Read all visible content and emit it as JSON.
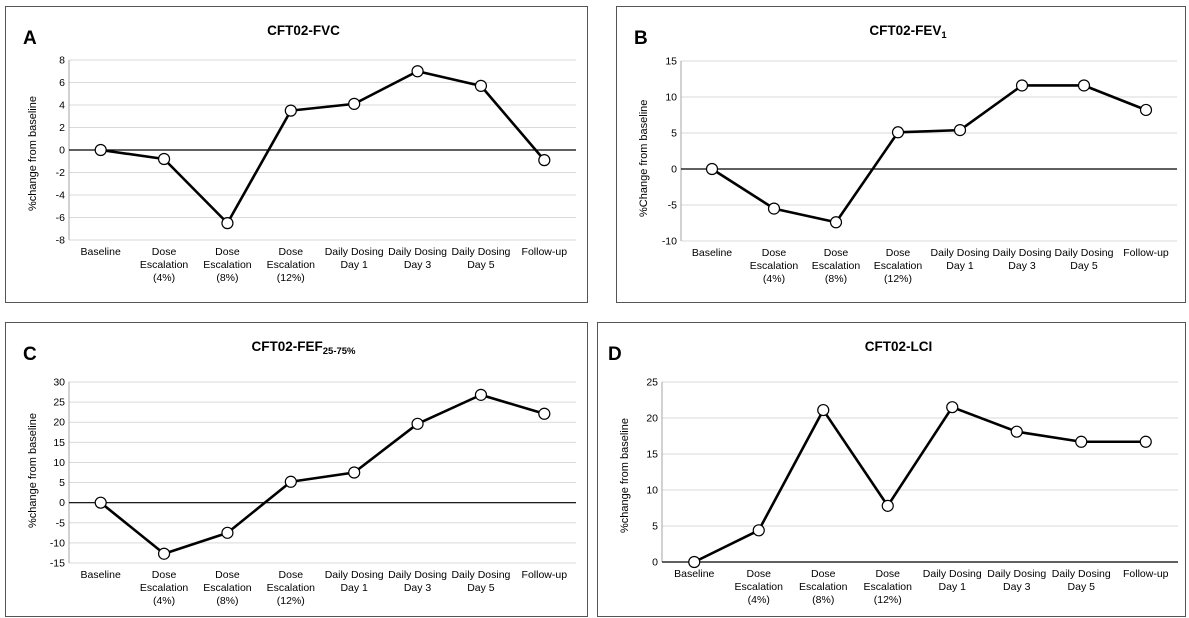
{
  "x_categories": [
    [
      "Baseline"
    ],
    [
      "Dose",
      "Escalation",
      "(4%)"
    ],
    [
      "Dose",
      "Escalation",
      "(8%)"
    ],
    [
      "Dose",
      "Escalation",
      "(12%)"
    ],
    [
      "Daily Dosing",
      "Day 1"
    ],
    [
      "Daily Dosing",
      "Day 3"
    ],
    [
      "Daily Dosing",
      "Day 5"
    ],
    [
      "Follow-up"
    ]
  ],
  "panels": {
    "A": {
      "label": "A",
      "title": "CFT02-FVC",
      "ylabel": "%change from baseline"
    },
    "B": {
      "label": "B",
      "title": "CFT02-FEV",
      "title_sub": "1",
      "ylabel": "%Change from baseline"
    },
    "C": {
      "label": "C",
      "title": "CFT02-FEF",
      "title_sub": "25-75%",
      "ylabel": "%change from baseline"
    },
    "D": {
      "label": "D",
      "title": "CFT02-LCI",
      "ylabel": "%change from baseline"
    }
  },
  "chart_data": [
    {
      "type": "line",
      "panel": "A",
      "title": "CFT02-FVC",
      "ylabel": "%change from baseline",
      "categories": [
        "Baseline",
        "Dose Escalation (4%)",
        "Dose Escalation (8%)",
        "Dose Escalation (12%)",
        "Daily Dosing Day 1",
        "Daily Dosing Day 3",
        "Daily Dosing Day 5",
        "Follow-up"
      ],
      "values": [
        0,
        -0.8,
        -6.5,
        3.5,
        4.1,
        7.0,
        5.7,
        -0.9
      ],
      "ylim": [
        -8,
        8
      ],
      "yticks": [
        -8,
        -6,
        -4,
        -2,
        0,
        2,
        4,
        6,
        8
      ],
      "grid": true,
      "legend": "none"
    },
    {
      "type": "line",
      "panel": "B",
      "title": "CFT02-FEV1",
      "ylabel": "%Change from baseline",
      "categories": [
        "Baseline",
        "Dose Escalation (4%)",
        "Dose Escalation (8%)",
        "Dose Escalation (12%)",
        "Daily Dosing Day 1",
        "Daily Dosing Day 3",
        "Daily Dosing Day 5",
        "Follow-up"
      ],
      "values": [
        0,
        -5.5,
        -7.4,
        5.1,
        5.4,
        11.6,
        11.6,
        8.2
      ],
      "ylim": [
        -10,
        15
      ],
      "yticks": [
        -10,
        -5,
        0,
        5,
        10,
        15
      ],
      "grid": true,
      "legend": "none"
    },
    {
      "type": "line",
      "panel": "C",
      "title": "CFT02-FEF25-75%",
      "ylabel": "%change from baseline",
      "categories": [
        "Baseline",
        "Dose Escalation (4%)",
        "Dose Escalation (8%)",
        "Dose Escalation (12%)",
        "Daily Dosing Day 1",
        "Daily Dosing Day 3",
        "Daily Dosing Day 5",
        "Follow-up"
      ],
      "values": [
        0,
        -12.7,
        -7.5,
        5.2,
        7.5,
        19.6,
        26.8,
        22.1
      ],
      "ylim": [
        -15,
        30
      ],
      "yticks": [
        -15,
        -10,
        -5,
        0,
        5,
        10,
        15,
        20,
        25,
        30
      ],
      "grid": true,
      "legend": "none"
    },
    {
      "type": "line",
      "panel": "D",
      "title": "CFT02-LCI",
      "ylabel": "%change from baseline",
      "categories": [
        "Baseline",
        "Dose Escalation (4%)",
        "Dose Escalation (8%)",
        "Dose Escalation (12%)",
        "Daily Dosing Day 1",
        "Daily Dosing Day 3",
        "Daily Dosing Day 5",
        "Follow-up"
      ],
      "values": [
        0,
        4.4,
        21.1,
        7.8,
        21.5,
        18.1,
        16.7,
        16.7
      ],
      "ylim": [
        0,
        25
      ],
      "yticks": [
        0,
        5,
        10,
        15,
        20,
        25
      ],
      "grid": true,
      "legend": "none"
    }
  ]
}
